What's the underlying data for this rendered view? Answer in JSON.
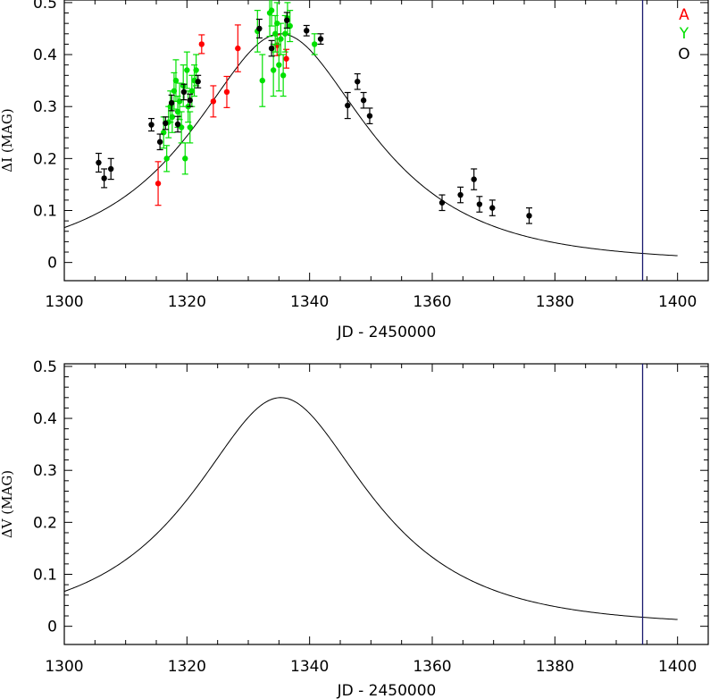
{
  "chart_data": [
    {
      "type": "scatter",
      "title": "",
      "xlabel": "JD - 2450000",
      "ylabel": "ΔI (MAG)",
      "xlim": [
        1300,
        1405
      ],
      "ylim": [
        -0.035,
        0.505
      ],
      "xticks": [
        1300,
        1320,
        1340,
        1360,
        1380,
        1400
      ],
      "yticks": [
        0,
        0.1,
        0.2,
        0.3,
        0.4,
        0.5
      ],
      "ytick_labels": [
        "0",
        "0.1",
        "0.2",
        "0.3",
        "0.4",
        "0.5"
      ],
      "grid": false,
      "legend_position": "top-right",
      "vline_x": 1394.3,
      "vline_color": "#1a1a6e",
      "model_curve": {
        "name": "model",
        "color": "#000000",
        "t0": 1335.3,
        "u0": 0.57,
        "tE": 23.2,
        "amp": 0.44,
        "x_range": [
          1300,
          1400
        ]
      },
      "series": [
        {
          "name": "A",
          "color": "#ff0000",
          "points": [
            {
              "x": 1315.3,
              "y": 0.152,
              "err": 0.042
            },
            {
              "x": 1322.4,
              "y": 0.42,
              "err": 0.018
            },
            {
              "x": 1324.3,
              "y": 0.31,
              "err": 0.03
            },
            {
              "x": 1326.5,
              "y": 0.328,
              "err": 0.03
            },
            {
              "x": 1328.3,
              "y": 0.412,
              "err": 0.045
            },
            {
              "x": 1334.7,
              "y": 0.418,
              "err": 0.02
            },
            {
              "x": 1336.2,
              "y": 0.392,
              "err": 0.018
            }
          ]
        },
        {
          "name": "Y",
          "color": "#00e000",
          "points": [
            {
              "x": 1316.2,
              "y": 0.25,
              "err": 0.03
            },
            {
              "x": 1316.7,
              "y": 0.2,
              "err": 0.025
            },
            {
              "x": 1317.0,
              "y": 0.27,
              "err": 0.03
            },
            {
              "x": 1317.3,
              "y": 0.3,
              "err": 0.03
            },
            {
              "x": 1317.6,
              "y": 0.28,
              "err": 0.03
            },
            {
              "x": 1317.9,
              "y": 0.33,
              "err": 0.035
            },
            {
              "x": 1318.2,
              "y": 0.35,
              "err": 0.04
            },
            {
              "x": 1318.5,
              "y": 0.29,
              "err": 0.03
            },
            {
              "x": 1318.8,
              "y": 0.31,
              "err": 0.035
            },
            {
              "x": 1319.1,
              "y": 0.26,
              "err": 0.03
            },
            {
              "x": 1319.4,
              "y": 0.34,
              "err": 0.04
            },
            {
              "x": 1319.7,
              "y": 0.2,
              "err": 0.03
            },
            {
              "x": 1320.0,
              "y": 0.37,
              "err": 0.035
            },
            {
              "x": 1320.2,
              "y": 0.3,
              "err": 0.03
            },
            {
              "x": 1320.5,
              "y": 0.26,
              "err": 0.03
            },
            {
              "x": 1320.8,
              "y": 0.33,
              "err": 0.03
            },
            {
              "x": 1321.2,
              "y": 0.35,
              "err": 0.03
            },
            {
              "x": 1321.5,
              "y": 0.37,
              "err": 0.03
            },
            {
              "x": 1331.5,
              "y": 0.445,
              "err": 0.04
            },
            {
              "x": 1332.3,
              "y": 0.35,
              "err": 0.05
            },
            {
              "x": 1333.5,
              "y": 0.48,
              "err": 0.045
            },
            {
              "x": 1333.8,
              "y": 0.485,
              "err": 0.03
            },
            {
              "x": 1334.1,
              "y": 0.37,
              "err": 0.05
            },
            {
              "x": 1334.4,
              "y": 0.44,
              "err": 0.035
            },
            {
              "x": 1334.7,
              "y": 0.46,
              "err": 0.04
            },
            {
              "x": 1335.0,
              "y": 0.38,
              "err": 0.05
            },
            {
              "x": 1335.3,
              "y": 0.43,
              "err": 0.03
            },
            {
              "x": 1335.7,
              "y": 0.36,
              "err": 0.04
            },
            {
              "x": 1336.0,
              "y": 0.44,
              "err": 0.035
            },
            {
              "x": 1336.4,
              "y": 0.47,
              "err": 0.03
            },
            {
              "x": 1336.8,
              "y": 0.455,
              "err": 0.03
            },
            {
              "x": 1340.8,
              "y": 0.42,
              "err": 0.02
            }
          ]
        },
        {
          "name": "O",
          "color": "#000000",
          "points": [
            {
              "x": 1305.6,
              "y": 0.192,
              "err": 0.018
            },
            {
              "x": 1306.5,
              "y": 0.162,
              "err": 0.018
            },
            {
              "x": 1307.6,
              "y": 0.18,
              "err": 0.02
            },
            {
              "x": 1314.2,
              "y": 0.265,
              "err": 0.012
            },
            {
              "x": 1315.6,
              "y": 0.232,
              "err": 0.015
            },
            {
              "x": 1316.5,
              "y": 0.268,
              "err": 0.012
            },
            {
              "x": 1317.5,
              "y": 0.307,
              "err": 0.015
            },
            {
              "x": 1318.5,
              "y": 0.266,
              "err": 0.015
            },
            {
              "x": 1319.5,
              "y": 0.328,
              "err": 0.015
            },
            {
              "x": 1320.5,
              "y": 0.312,
              "err": 0.012
            },
            {
              "x": 1321.8,
              "y": 0.348,
              "err": 0.012
            },
            {
              "x": 1331.8,
              "y": 0.45,
              "err": 0.018
            },
            {
              "x": 1333.8,
              "y": 0.412,
              "err": 0.015
            },
            {
              "x": 1336.3,
              "y": 0.466,
              "err": 0.015
            },
            {
              "x": 1339.5,
              "y": 0.446,
              "err": 0.01
            },
            {
              "x": 1341.8,
              "y": 0.43,
              "err": 0.01
            },
            {
              "x": 1346.2,
              "y": 0.302,
              "err": 0.025
            },
            {
              "x": 1347.8,
              "y": 0.348,
              "err": 0.015
            },
            {
              "x": 1348.8,
              "y": 0.312,
              "err": 0.015
            },
            {
              "x": 1349.8,
              "y": 0.282,
              "err": 0.015
            },
            {
              "x": 1361.6,
              "y": 0.115,
              "err": 0.015
            },
            {
              "x": 1364.6,
              "y": 0.13,
              "err": 0.015
            },
            {
              "x": 1366.8,
              "y": 0.16,
              "err": 0.02
            },
            {
              "x": 1367.7,
              "y": 0.112,
              "err": 0.015
            },
            {
              "x": 1369.8,
              "y": 0.105,
              "err": 0.015
            },
            {
              "x": 1375.8,
              "y": 0.09,
              "err": 0.015
            }
          ]
        }
      ]
    },
    {
      "type": "line",
      "title": "",
      "xlabel": "JD - 2450000",
      "ylabel": "ΔV (MAG)",
      "xlim": [
        1300,
        1405
      ],
      "ylim": [
        -0.035,
        0.505
      ],
      "xticks": [
        1300,
        1320,
        1340,
        1360,
        1380,
        1400
      ],
      "yticks": [
        0,
        0.1,
        0.2,
        0.3,
        0.4,
        0.5
      ],
      "ytick_labels": [
        "0",
        "0.1",
        "0.2",
        "0.3",
        "0.4",
        "0.5"
      ],
      "grid": false,
      "vline_x": 1394.3,
      "vline_color": "#1a1a6e",
      "model_curve": {
        "name": "model",
        "color": "#000000",
        "t0": 1335.3,
        "u0": 0.57,
        "tE": 23.2,
        "amp": 0.44,
        "x_range": [
          1300,
          1400
        ]
      },
      "series": []
    }
  ]
}
